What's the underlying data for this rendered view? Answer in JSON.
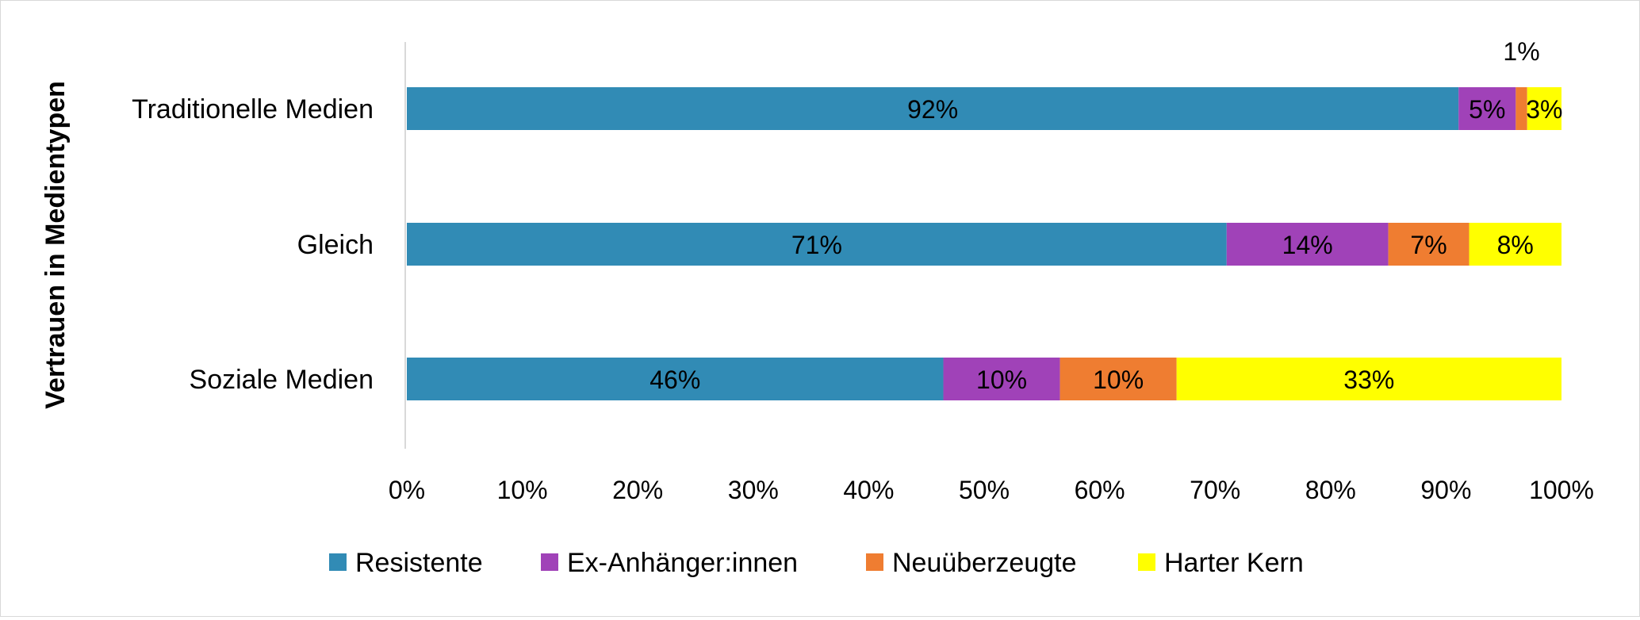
{
  "chart_data": {
    "type": "bar",
    "orientation": "horizontal",
    "stacked": "percent",
    "title": "",
    "xlabel": "",
    "ylabel": "Vertrauen in Medientypen",
    "categories": [
      "Traditionelle Medien",
      "Gleich",
      "Soziale Medien"
    ],
    "series": [
      {
        "name": "Resistente",
        "color": "#318bb5",
        "values": [
          92,
          71,
          46
        ],
        "labels": [
          "92%",
          "71%",
          "46%"
        ]
      },
      {
        "name": "Ex-Anhänger:innen",
        "color": "#a042b8",
        "values": [
          5,
          14,
          10
        ],
        "labels": [
          "5%",
          "14%",
          "10%"
        ]
      },
      {
        "name": "Neuüberzeugte",
        "color": "#ef7d31",
        "values": [
          1,
          7,
          10
        ],
        "labels": [
          "1%",
          "7%",
          "10%"
        ]
      },
      {
        "name": "Harter Kern",
        "color": "#ffff00",
        "values": [
          3,
          8,
          33
        ],
        "labels": [
          "3%",
          "8%",
          "33%"
        ]
      }
    ],
    "xlim": [
      0,
      100
    ],
    "xticks": [
      "0%",
      "10%",
      "20%",
      "30%",
      "40%",
      "50%",
      "60%",
      "70%",
      "80%",
      "90%",
      "100%"
    ],
    "grid": false,
    "legend_position": "bottom"
  }
}
